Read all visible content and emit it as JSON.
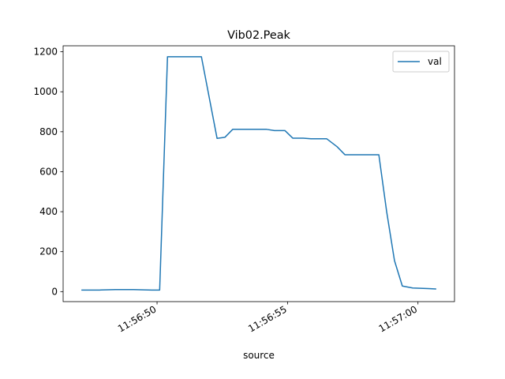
{
  "chart_data": {
    "type": "line",
    "title": "Vib02.Peak",
    "xlabel": "source",
    "ylabel": "",
    "xlim": [
      "11:56:46.4",
      "11:57:01.4"
    ],
    "ylim": [
      -50,
      1230
    ],
    "yticks": [
      0,
      200,
      400,
      600,
      800,
      1000,
      1200
    ],
    "xticks": [
      "11:56:50",
      "11:56:55",
      "11:57:00"
    ],
    "legend": {
      "placement": "top-right"
    },
    "series": [
      {
        "name": "val",
        "color": "#1f77b4",
        "x": [
          "11:56:47.1",
          "11:56:47.8",
          "11:56:48.4",
          "11:56:49.1",
          "11:56:49.8",
          "11:56:50.1",
          "11:56:50.4",
          "11:56:51.1",
          "11:56:51.7",
          "11:56:52.3",
          "11:56:52.6",
          "11:56:52.9",
          "11:56:53.6",
          "11:56:54.2",
          "11:56:54.5",
          "11:56:54.9",
          "11:56:55.2",
          "11:56:55.6",
          "11:56:55.9",
          "11:56:56.2",
          "11:56:56.5",
          "11:56:56.9",
          "11:56:57.2",
          "11:56:57.8",
          "11:56:58.5",
          "11:56:58.8",
          "11:56:59.1",
          "11:56:59.4",
          "11:56:59.8",
          "11:57:00.4",
          "11:57:00.7"
        ],
        "values": [
          8,
          8,
          10,
          10,
          8,
          8,
          1175,
          1175,
          1175,
          767,
          772,
          812,
          812,
          812,
          806,
          806,
          768,
          768,
          765,
          765,
          765,
          725,
          685,
          685,
          685,
          400,
          155,
          28,
          18,
          15,
          13
        ]
      }
    ]
  }
}
